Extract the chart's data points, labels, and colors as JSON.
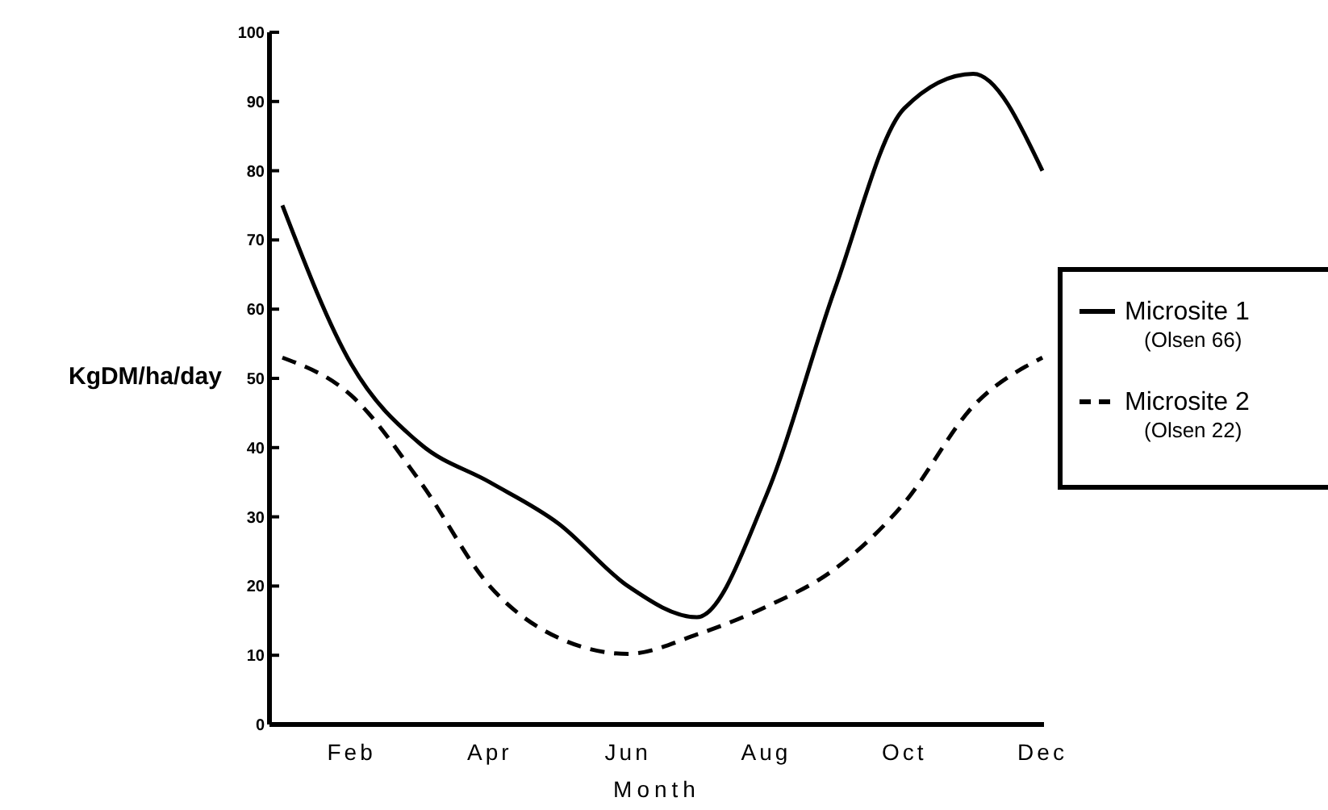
{
  "chart_data": {
    "type": "line",
    "xlabel": "Month",
    "ylabel": "KgDM/ha/day",
    "categories": [
      null,
      "Feb",
      null,
      "Apr",
      null,
      "Jun",
      null,
      "Aug",
      null,
      "Oct",
      null,
      "Dec"
    ],
    "ylim": [
      0,
      100
    ],
    "yticks": [
      0,
      10,
      20,
      30,
      40,
      50,
      60,
      70,
      80,
      90,
      100
    ],
    "legend": "right",
    "grid": false,
    "series": [
      {
        "name": "Microsite 1\n(Olsen 66)",
        "color": "#000000",
        "line_style": "solid",
        "values": [
          75,
          52,
          40.5,
          35,
          29,
          20,
          15.5,
          33,
          63,
          89,
          94,
          80
        ]
      },
      {
        "name": "Microsite 2\n(Olsen 22)",
        "color": "#000000",
        "line_style": "dashed",
        "values": [
          53,
          47.5,
          35,
          20,
          12.5,
          10.2,
          13,
          17,
          22.5,
          32,
          46,
          53
        ]
      }
    ]
  }
}
